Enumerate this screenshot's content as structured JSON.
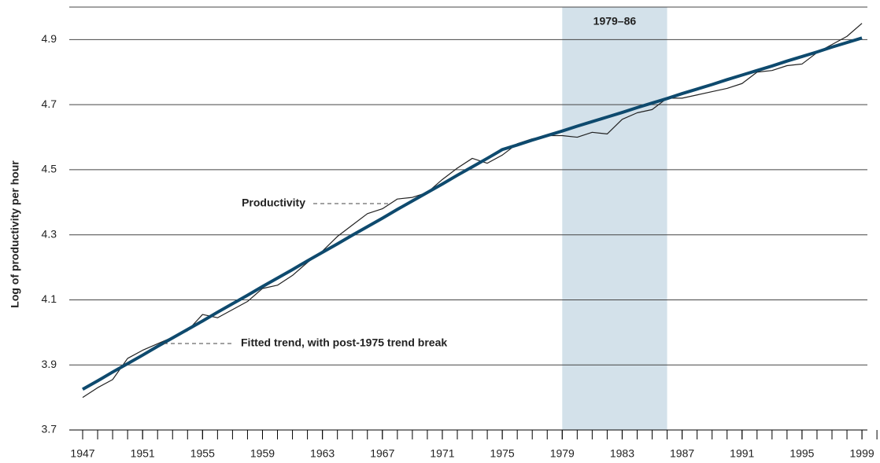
{
  "chart_data": {
    "type": "line",
    "y_label": "Log of productivity per hour",
    "x": [
      1947,
      1948,
      1949,
      1950,
      1951,
      1952,
      1953,
      1954,
      1955,
      1956,
      1957,
      1958,
      1959,
      1960,
      1961,
      1962,
      1963,
      1964,
      1965,
      1966,
      1967,
      1968,
      1969,
      1970,
      1971,
      1972,
      1973,
      1974,
      1975,
      1976,
      1977,
      1978,
      1979,
      1980,
      1981,
      1982,
      1983,
      1984,
      1985,
      1986,
      1987,
      1988,
      1989,
      1990,
      1991,
      1992,
      1993,
      1994,
      1995,
      1996,
      1997,
      1998,
      1999
    ],
    "series": [
      {
        "name": "Productivity",
        "color": "#222222",
        "width": 1.2,
        "values": [
          3.8,
          3.83,
          3.855,
          3.92,
          3.945,
          3.965,
          3.985,
          4.005,
          4.055,
          4.045,
          4.07,
          4.095,
          4.135,
          4.145,
          4.175,
          4.215,
          4.25,
          4.295,
          4.33,
          4.365,
          4.38,
          4.41,
          4.415,
          4.43,
          4.47,
          4.505,
          4.535,
          4.52,
          4.545,
          4.58,
          4.595,
          4.605,
          4.605,
          4.6,
          4.615,
          4.61,
          4.655,
          4.675,
          4.685,
          4.72,
          4.72,
          4.73,
          4.74,
          4.75,
          4.765,
          4.8,
          4.805,
          4.82,
          4.825,
          4.86,
          4.885,
          4.91,
          4.95
        ]
      },
      {
        "name": "Fitted trend, with post-1975 trend break",
        "color": "#0e4a6e",
        "width": 4,
        "values": [
          3.825,
          3.851,
          3.878,
          3.904,
          3.93,
          3.957,
          3.983,
          4.009,
          4.035,
          4.062,
          4.088,
          4.114,
          4.141,
          4.167,
          4.193,
          4.22,
          4.246,
          4.272,
          4.299,
          4.325,
          4.351,
          4.378,
          4.404,
          4.43,
          4.456,
          4.483,
          4.509,
          4.535,
          4.562,
          4.576,
          4.591,
          4.605,
          4.619,
          4.634,
          4.648,
          4.662,
          4.676,
          4.691,
          4.705,
          4.719,
          4.734,
          4.748,
          4.762,
          4.777,
          4.791,
          4.805,
          4.819,
          4.834,
          4.848,
          4.862,
          4.877,
          4.891,
          4.905
        ]
      }
    ],
    "shaded_region": {
      "label": "1979–86",
      "x": [
        1979,
        1986
      ],
      "color": "#d3e1ea"
    },
    "xlim": [
      1946.1,
      2000.3
    ],
    "xticks": [
      1947,
      1951,
      1955,
      1959,
      1963,
      1967,
      1971,
      1975,
      1979,
      1983,
      1987,
      1991,
      1995,
      1999
    ],
    "ylim": [
      3.7,
      5.0
    ],
    "yticks": [
      3.7,
      {
        "value": 3.9,
        "label": "3.9"
      },
      {
        "value": 4.1,
        "label": "4.1"
      },
      4.3,
      4.5,
      4.7,
      4.9
    ],
    "grid": true
  }
}
